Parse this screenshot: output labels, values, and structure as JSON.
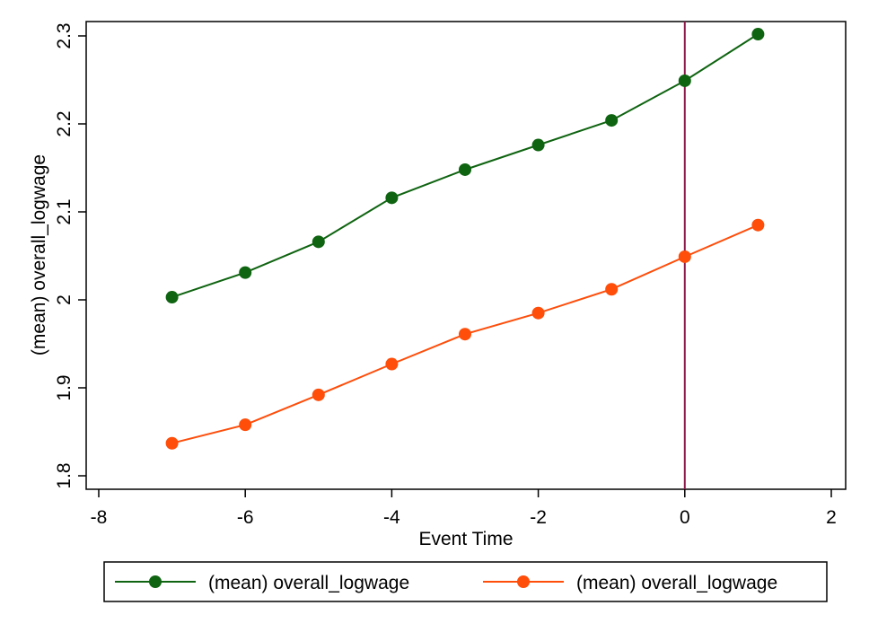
{
  "chart_data": {
    "type": "line",
    "xlabel": "Event Time",
    "ylabel": "(mean) overall_logwage",
    "xlim": [
      -8,
      2
    ],
    "ylim": [
      1.8,
      2.3
    ],
    "x_ticks": [
      "-8",
      "-6",
      "-4",
      "-2",
      "0",
      "2"
    ],
    "y_ticks": [
      "1.8",
      "1.9",
      "2",
      "2.1",
      "2.2",
      "2.3"
    ],
    "vline": {
      "x": 0,
      "color": "#8b1a4a"
    },
    "grid": false,
    "legend_position": "bottom",
    "x": [
      -7,
      -6,
      -5,
      -4,
      -3,
      -2,
      -1,
      0,
      1
    ],
    "series": [
      {
        "name": "(mean) overall_logwage",
        "color": "#0f6411",
        "values": [
          2.003,
          2.031,
          2.066,
          2.116,
          2.148,
          2.176,
          2.204,
          2.249,
          2.302
        ]
      },
      {
        "name": "(mean) overall_logwage",
        "color": "#ff4d0a",
        "values": [
          1.837,
          1.858,
          1.892,
          1.927,
          1.961,
          1.985,
          2.012,
          2.049,
          2.085
        ]
      }
    ]
  }
}
